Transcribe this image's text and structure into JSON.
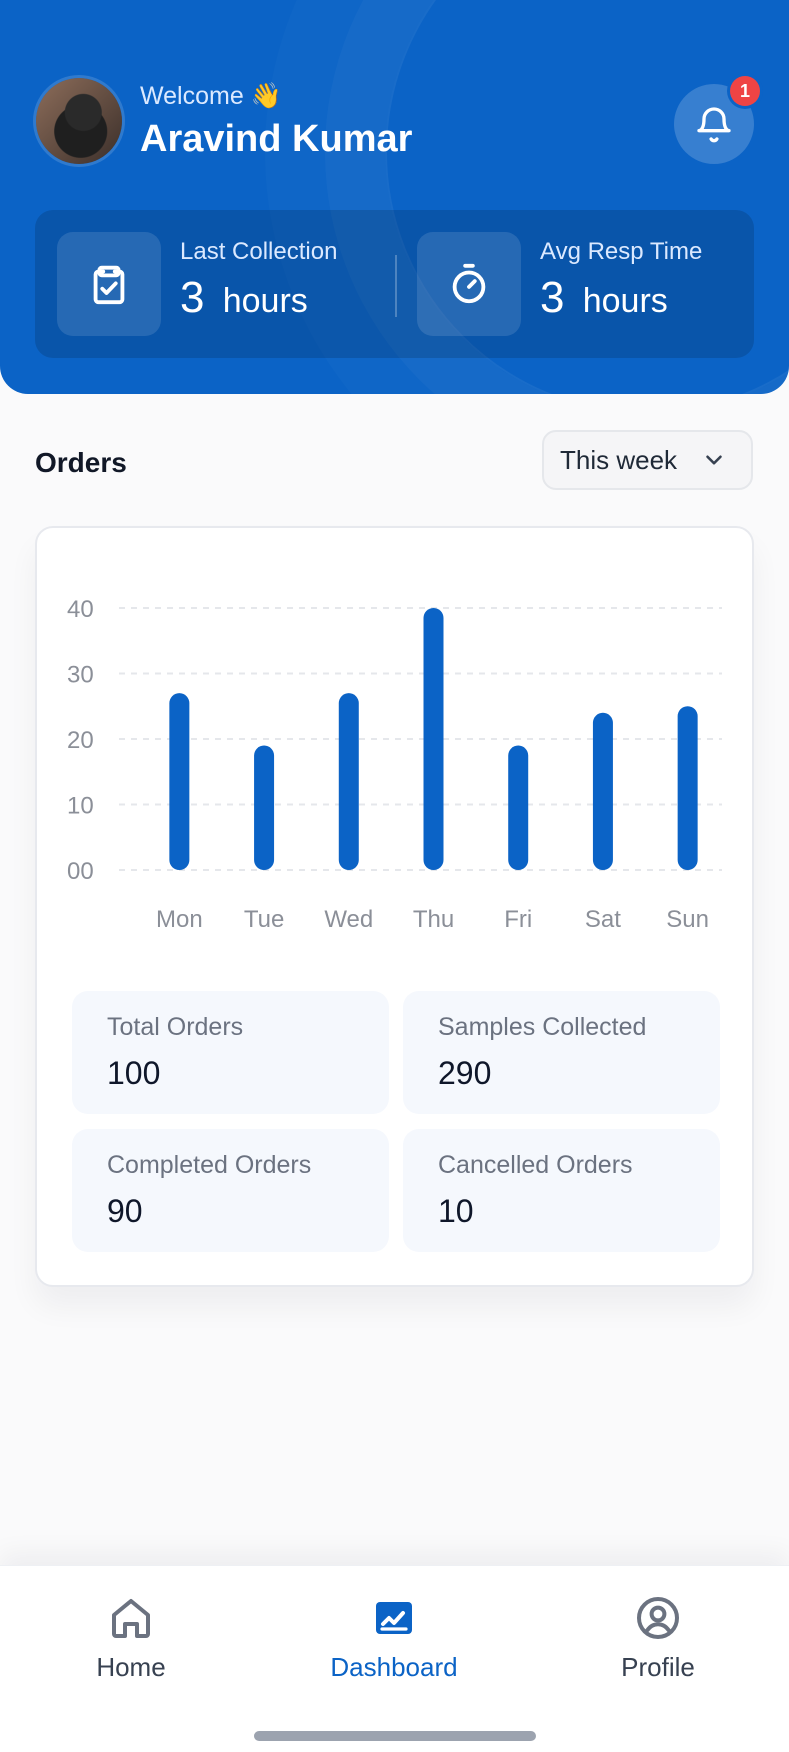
{
  "header": {
    "welcome_text": "Welcome 👋",
    "user_name": "Aravind Kumar",
    "notification_count": "1"
  },
  "stats": {
    "last_collection": {
      "label": "Last Collection",
      "value": "3",
      "unit": "hours"
    },
    "avg_resp_time": {
      "label": "Avg Resp Time",
      "value": "3",
      "unit": "hours"
    }
  },
  "orders": {
    "title": "Orders",
    "filter": "This week"
  },
  "chart_data": {
    "type": "bar",
    "categories": [
      "Mon",
      "Tue",
      "Wed",
      "Thu",
      "Fri",
      "Sat",
      "Sun"
    ],
    "values": [
      27,
      19,
      27,
      40,
      19,
      24,
      25
    ],
    "y_ticks": [
      "00",
      "10",
      "20",
      "30",
      "40"
    ],
    "ylim": [
      0,
      40
    ],
    "grid": true,
    "bar_color": "#0b63c6"
  },
  "summary": {
    "total_orders": {
      "label": "Total Orders",
      "value": "100"
    },
    "samples_collected": {
      "label": "Samples Collected",
      "value": "290"
    },
    "completed_orders": {
      "label": "Completed Orders",
      "value": "90"
    },
    "cancelled_orders": {
      "label": "Cancelled Orders",
      "value": "10"
    }
  },
  "bottom_nav": {
    "items": [
      {
        "label": "Home",
        "icon": "home-icon"
      },
      {
        "label": "Dashboard",
        "icon": "chart-icon"
      },
      {
        "label": "Profile",
        "icon": "user-circle-icon"
      }
    ],
    "active_index": 1
  }
}
